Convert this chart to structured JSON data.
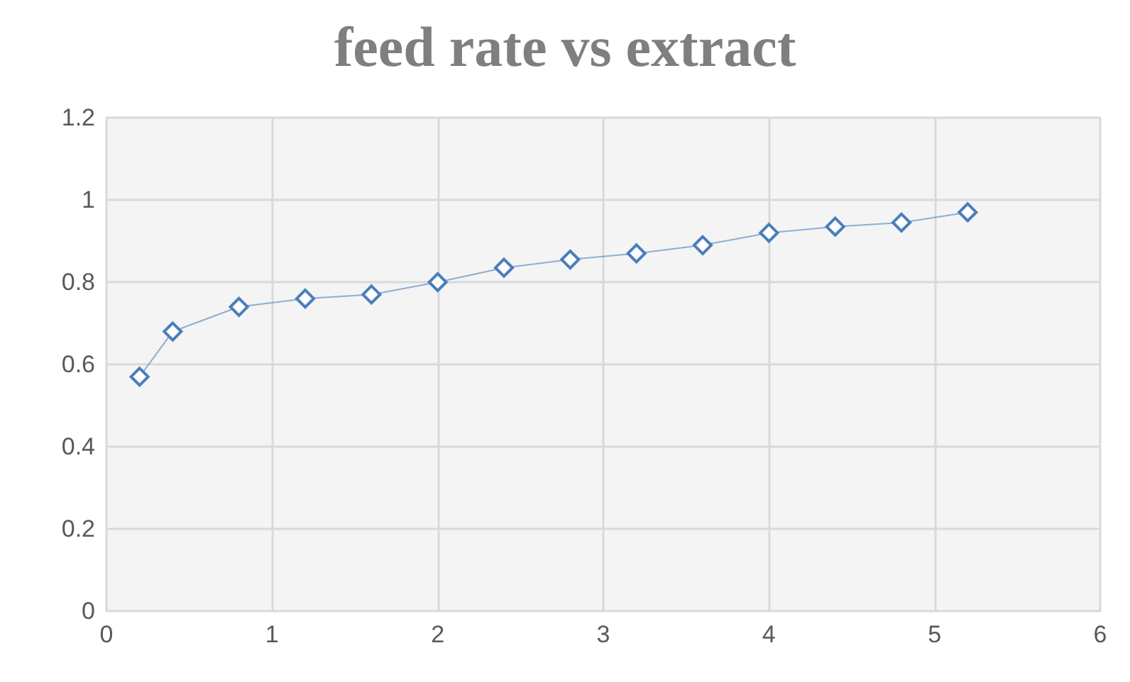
{
  "chart_data": {
    "type": "line",
    "title": "feed rate vs extract",
    "x": [
      0.2,
      0.4,
      0.8,
      1.2,
      1.6,
      2.0,
      2.4,
      2.8,
      3.2,
      3.6,
      4.0,
      4.4,
      4.8,
      5.2
    ],
    "series": [
      {
        "color": "#4a7ebb",
        "values": [
          0.57,
          0.68,
          0.74,
          0.76,
          0.77,
          0.8,
          0.835,
          0.855,
          0.87,
          0.89,
          0.92,
          0.935,
          0.945,
          0.97
        ]
      }
    ],
    "xlim": [
      0,
      6
    ],
    "xticks": [
      0,
      1,
      2,
      3,
      4,
      5,
      6
    ],
    "ylim": [
      0,
      1.2
    ],
    "yticks": [
      0,
      0.2,
      0.4,
      0.6,
      0.8,
      1,
      1.2
    ],
    "grid": true,
    "marker": "diamond",
    "line_style": "solid"
  }
}
